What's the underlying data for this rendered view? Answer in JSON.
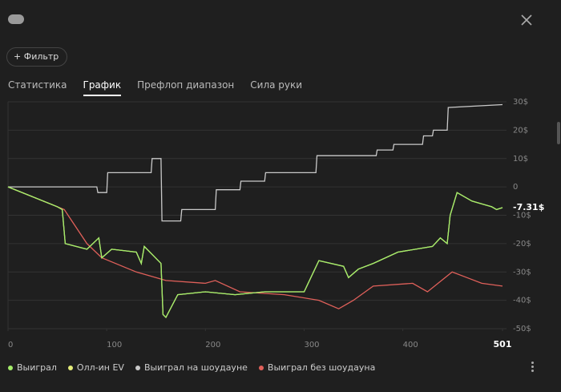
{
  "ui": {
    "filter": "Фильтр",
    "tabs": [
      "Статистика",
      "График",
      "Префлоп диапазон",
      "Сила руки"
    ],
    "active_tab": 1
  },
  "chart_data": {
    "type": "line",
    "xlim": [
      0,
      501
    ],
    "xticks": [
      0,
      100,
      200,
      300,
      400,
      501
    ],
    "ylim": [
      -50,
      30
    ],
    "yticks": [
      {
        "value": 30,
        "label": "30$"
      },
      {
        "value": 20,
        "label": "20$"
      },
      {
        "value": 10,
        "label": "10$"
      },
      0,
      {
        "value": -10,
        "label": "-10$"
      },
      {
        "value": -20,
        "label": "-20$"
      },
      {
        "value": -30,
        "label": "-30$"
      },
      {
        "value": -40,
        "label": "-40$"
      },
      {
        "value": -50,
        "label": "-50$"
      }
    ],
    "grid": true,
    "series": [
      {
        "name": "Выиграл",
        "color": "#a3ec6a",
        "x": [
          0,
          50,
          55,
          58,
          80,
          92,
          95,
          105,
          130,
          135,
          138,
          155,
          157,
          160,
          172,
          200,
          230,
          260,
          300,
          315,
          340,
          345,
          355,
          370,
          395,
          430,
          438,
          445,
          448,
          455,
          470,
          490,
          495,
          501
        ],
        "values": [
          0,
          -7,
          -8,
          -20,
          -22,
          -18,
          -25,
          -22,
          -23,
          -27,
          -21,
          -27,
          -45,
          -46,
          -38,
          -37,
          -38,
          -37,
          -37,
          -26,
          -28,
          -32,
          -29,
          -27,
          -23,
          -21,
          -18,
          -20,
          -10,
          -2,
          -5,
          -7,
          -8,
          -7.31
        ],
        "value_labels": [
          null,
          null,
          null,
          null,
          null,
          null,
          null,
          null,
          null,
          null,
          null,
          null,
          null,
          null,
          null,
          null,
          null,
          null,
          null,
          null,
          null,
          null,
          null,
          null,
          null,
          null,
          null,
          null,
          null,
          null,
          null,
          null,
          null,
          "-7.31$"
        ]
      },
      {
        "name": "Олл-ин EV",
        "color": "#e4ec7a",
        "x": [
          0,
          50,
          55,
          58,
          80,
          92,
          95,
          105,
          130,
          135,
          138,
          155,
          157,
          160,
          172,
          200,
          230,
          260,
          300,
          315,
          340,
          345,
          355,
          370,
          395,
          430,
          438,
          445,
          448,
          455,
          470,
          490,
          495,
          501
        ],
        "values": [
          0,
          -7,
          -8,
          -20,
          -22,
          -18,
          -25,
          -22,
          -23,
          -27,
          -21,
          -27,
          -45,
          -46,
          -38,
          -37,
          -38,
          -37,
          -37,
          -26,
          -28,
          -32,
          -29,
          -27,
          -23,
          -21,
          -18,
          -20,
          -10,
          -2,
          -5,
          -7,
          -8,
          -7.31
        ]
      },
      {
        "name": "Выиграл на шоудауне",
        "color": "#c9c9c9",
        "x": [
          0,
          90,
          91,
          100,
          101,
          145,
          146,
          155,
          156,
          175,
          176,
          210,
          211,
          235,
          236,
          260,
          261,
          312,
          313,
          373,
          374,
          390,
          391,
          420,
          421,
          430,
          431,
          445,
          446,
          501
        ],
        "values": [
          0,
          0,
          -2,
          -2,
          5,
          5,
          10,
          10,
          -12,
          -12,
          -8,
          -8,
          -1,
          -1,
          2,
          2,
          5,
          5,
          11,
          11,
          13,
          13,
          15,
          15,
          18,
          18,
          20,
          20,
          28,
          29
        ]
      },
      {
        "name": "Выиграл без шоудауна",
        "color": "#e0605a",
        "x": [
          0,
          57,
          80,
          95,
          130,
          160,
          200,
          210,
          235,
          280,
          315,
          335,
          350,
          370,
          410,
          425,
          450,
          465,
          480,
          501
        ],
        "values": [
          0,
          -8,
          -20,
          -25,
          -30,
          -33,
          -34,
          -33,
          -37,
          -38,
          -40,
          -43,
          -40,
          -35,
          -34,
          -37,
          -30,
          -32,
          -34,
          -35
        ]
      }
    ]
  }
}
